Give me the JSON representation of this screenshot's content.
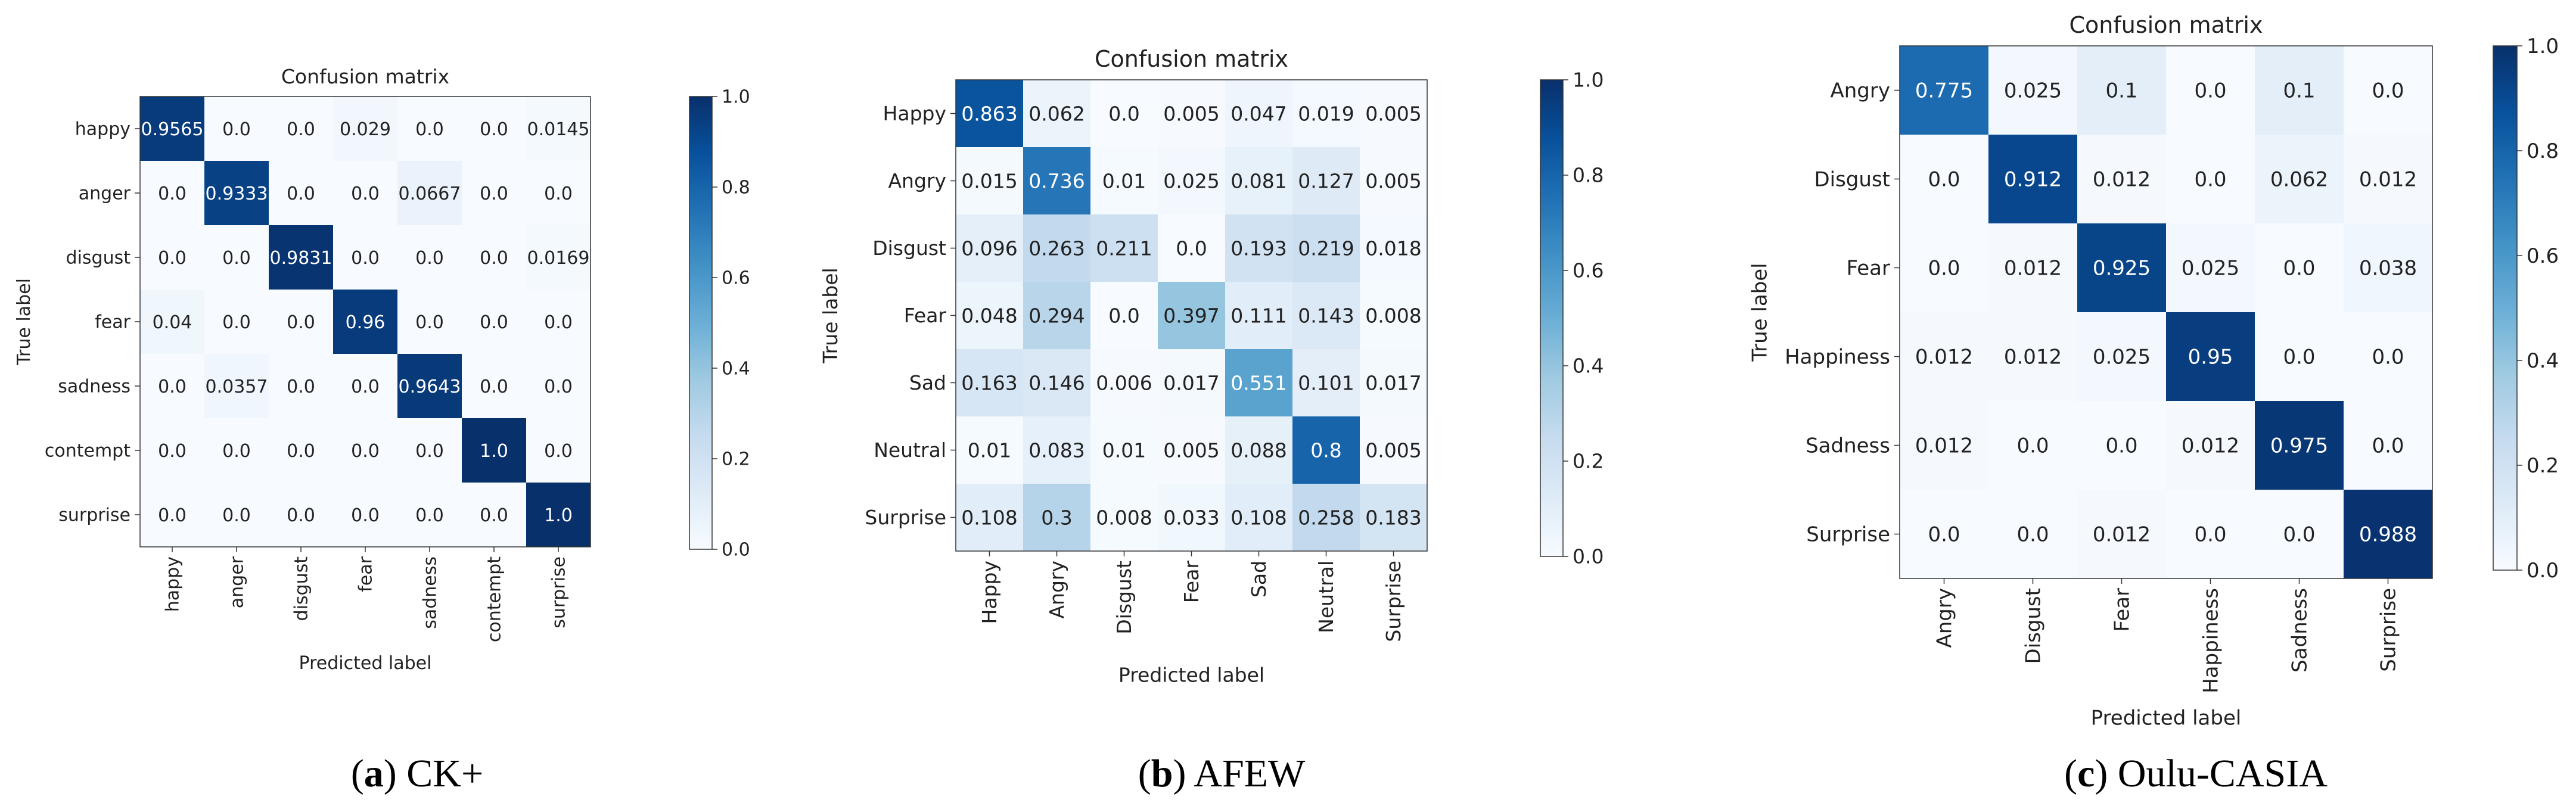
{
  "chart_data": [
    {
      "type": "heatmap",
      "title": "Confusion matrix",
      "xlabel": "Predicted label",
      "ylabel": "True label",
      "caption_letter": "a",
      "caption_text": ") CK+",
      "caption_open": "(",
      "categories": [
        "happy",
        "anger",
        "disgust",
        "fear",
        "sadness",
        "contempt",
        "surprise"
      ],
      "values": [
        [
          "0.9565",
          "0.0",
          "0.0",
          "0.029",
          "0.0",
          "0.0",
          "0.0145"
        ],
        [
          "0.0",
          "0.9333",
          "0.0",
          "0.0",
          "0.0667",
          "0.0",
          "0.0"
        ],
        [
          "0.0",
          "0.0",
          "0.9831",
          "0.0",
          "0.0",
          "0.0",
          "0.0169"
        ],
        [
          "0.04",
          "0.0",
          "0.0",
          "0.96",
          "0.0",
          "0.0",
          "0.0"
        ],
        [
          "0.0",
          "0.0357",
          "0.0",
          "0.0",
          "0.9643",
          "0.0",
          "0.0"
        ],
        [
          "0.0",
          "0.0",
          "0.0",
          "0.0",
          "0.0",
          "1.0",
          "0.0"
        ],
        [
          "0.0",
          "0.0",
          "0.0",
          "0.0",
          "0.0",
          "0.0",
          "1.0"
        ]
      ],
      "colorbar_ticks": [
        "0.0",
        "0.2",
        "0.4",
        "0.6",
        "0.8",
        "1.0"
      ],
      "colorbar_range": [
        0,
        1
      ]
    },
    {
      "type": "heatmap",
      "title": "Confusion matrix",
      "xlabel": "Predicted label",
      "ylabel": "True label",
      "caption_letter": "b",
      "caption_text": ") AFEW",
      "caption_open": "(",
      "categories": [
        "Happy",
        "Angry",
        "Disgust",
        "Fear",
        "Sad",
        "Neutral",
        "Surprise"
      ],
      "values": [
        [
          "0.863",
          "0.062",
          "0.0",
          "0.005",
          "0.047",
          "0.019",
          "0.005"
        ],
        [
          "0.015",
          "0.736",
          "0.01",
          "0.025",
          "0.081",
          "0.127",
          "0.005"
        ],
        [
          "0.096",
          "0.263",
          "0.211",
          "0.0",
          "0.193",
          "0.219",
          "0.018"
        ],
        [
          "0.048",
          "0.294",
          "0.0",
          "0.397",
          "0.111",
          "0.143",
          "0.008"
        ],
        [
          "0.163",
          "0.146",
          "0.006",
          "0.017",
          "0.551",
          "0.101",
          "0.017"
        ],
        [
          "0.01",
          "0.083",
          "0.01",
          "0.005",
          "0.088",
          "0.8",
          "0.005"
        ],
        [
          "0.108",
          "0.3",
          "0.008",
          "0.033",
          "0.108",
          "0.258",
          "0.183"
        ]
      ],
      "colorbar_ticks": [
        "0.0",
        "0.2",
        "0.4",
        "0.6",
        "0.8",
        "1.0"
      ],
      "colorbar_range": [
        0,
        1
      ]
    },
    {
      "type": "heatmap",
      "title": "Confusion matrix",
      "xlabel": "Predicted label",
      "ylabel": "True label",
      "caption_letter": "c",
      "caption_text": ") Oulu-CASIA",
      "caption_open": "(",
      "categories": [
        "Angry",
        "Disgust",
        "Fear",
        "Happiness",
        "Sadness",
        "Surprise"
      ],
      "values": [
        [
          "0.775",
          "0.025",
          "0.1",
          "0.0",
          "0.1",
          "0.0"
        ],
        [
          "0.0",
          "0.912",
          "0.012",
          "0.0",
          "0.062",
          "0.012"
        ],
        [
          "0.0",
          "0.012",
          "0.925",
          "0.025",
          "0.0",
          "0.038"
        ],
        [
          "0.012",
          "0.012",
          "0.025",
          "0.95",
          "0.0",
          "0.0"
        ],
        [
          "0.012",
          "0.0",
          "0.0",
          "0.012",
          "0.975",
          "0.0"
        ],
        [
          "0.0",
          "0.0",
          "0.012",
          "0.0",
          "0.0",
          "0.988"
        ]
      ],
      "colorbar_ticks": [
        "0.0",
        "0.2",
        "0.4",
        "0.6",
        "0.8",
        "1.0"
      ],
      "colorbar_range": [
        0,
        1
      ]
    }
  ]
}
